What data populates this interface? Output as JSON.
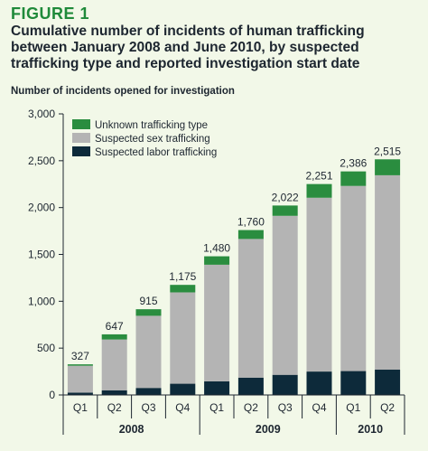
{
  "figure_label": "FIGURE 1",
  "title": "Cumulative number of incidents of human trafficking between January 2008 and June 2010, by suspected trafficking type and reported investigation start date",
  "colors": {
    "unknown": "#2a8d3f",
    "sex": "#b4b4b4",
    "labor": "#0d2a3a",
    "background": "#f2f8e8"
  },
  "chart_data": {
    "type": "bar",
    "stacked": true,
    "ylabel": "Number of incidents opened for investigation",
    "ylim": [
      0,
      3000
    ],
    "yticks": [
      0,
      500,
      1000,
      1500,
      2000,
      2500,
      3000
    ],
    "ytick_labels": [
      "0",
      "500",
      "1,000",
      "1,500",
      "2,000",
      "2,500",
      "3,000"
    ],
    "categories": [
      "Q1",
      "Q2",
      "Q3",
      "Q4",
      "Q1",
      "Q2",
      "Q3",
      "Q4",
      "Q1",
      "Q2"
    ],
    "year_groups": [
      {
        "label": "2008",
        "start": 0,
        "end": 3
      },
      {
        "label": "2009",
        "start": 4,
        "end": 7
      },
      {
        "label": "2010",
        "start": 8,
        "end": 9
      }
    ],
    "series": [
      {
        "name": "Suspected labor trafficking",
        "values": [
          25,
          50,
          75,
          120,
          145,
          185,
          215,
          250,
          255,
          270
        ]
      },
      {
        "name": "Suspected sex trafficking",
        "values": [
          287,
          542,
          770,
          975,
          1245,
          1480,
          1697,
          1855,
          1976,
          2075
        ]
      },
      {
        "name": "Unknown trafficking type",
        "values": [
          15,
          55,
          70,
          80,
          90,
          95,
          110,
          146,
          155,
          170
        ]
      }
    ],
    "totals": [
      327,
      647,
      915,
      1175,
      1480,
      1760,
      2022,
      2251,
      2386,
      2515
    ],
    "total_labels": [
      "327",
      "647",
      "915",
      "1,175",
      "1,480",
      "1,760",
      "2,022",
      "2,251",
      "2,386",
      "2,515"
    ],
    "legend": {
      "placement": "top-left",
      "entries": [
        "Unknown trafficking type",
        "Suspected sex trafficking",
        "Suspected labor trafficking"
      ]
    },
    "grid": false
  }
}
